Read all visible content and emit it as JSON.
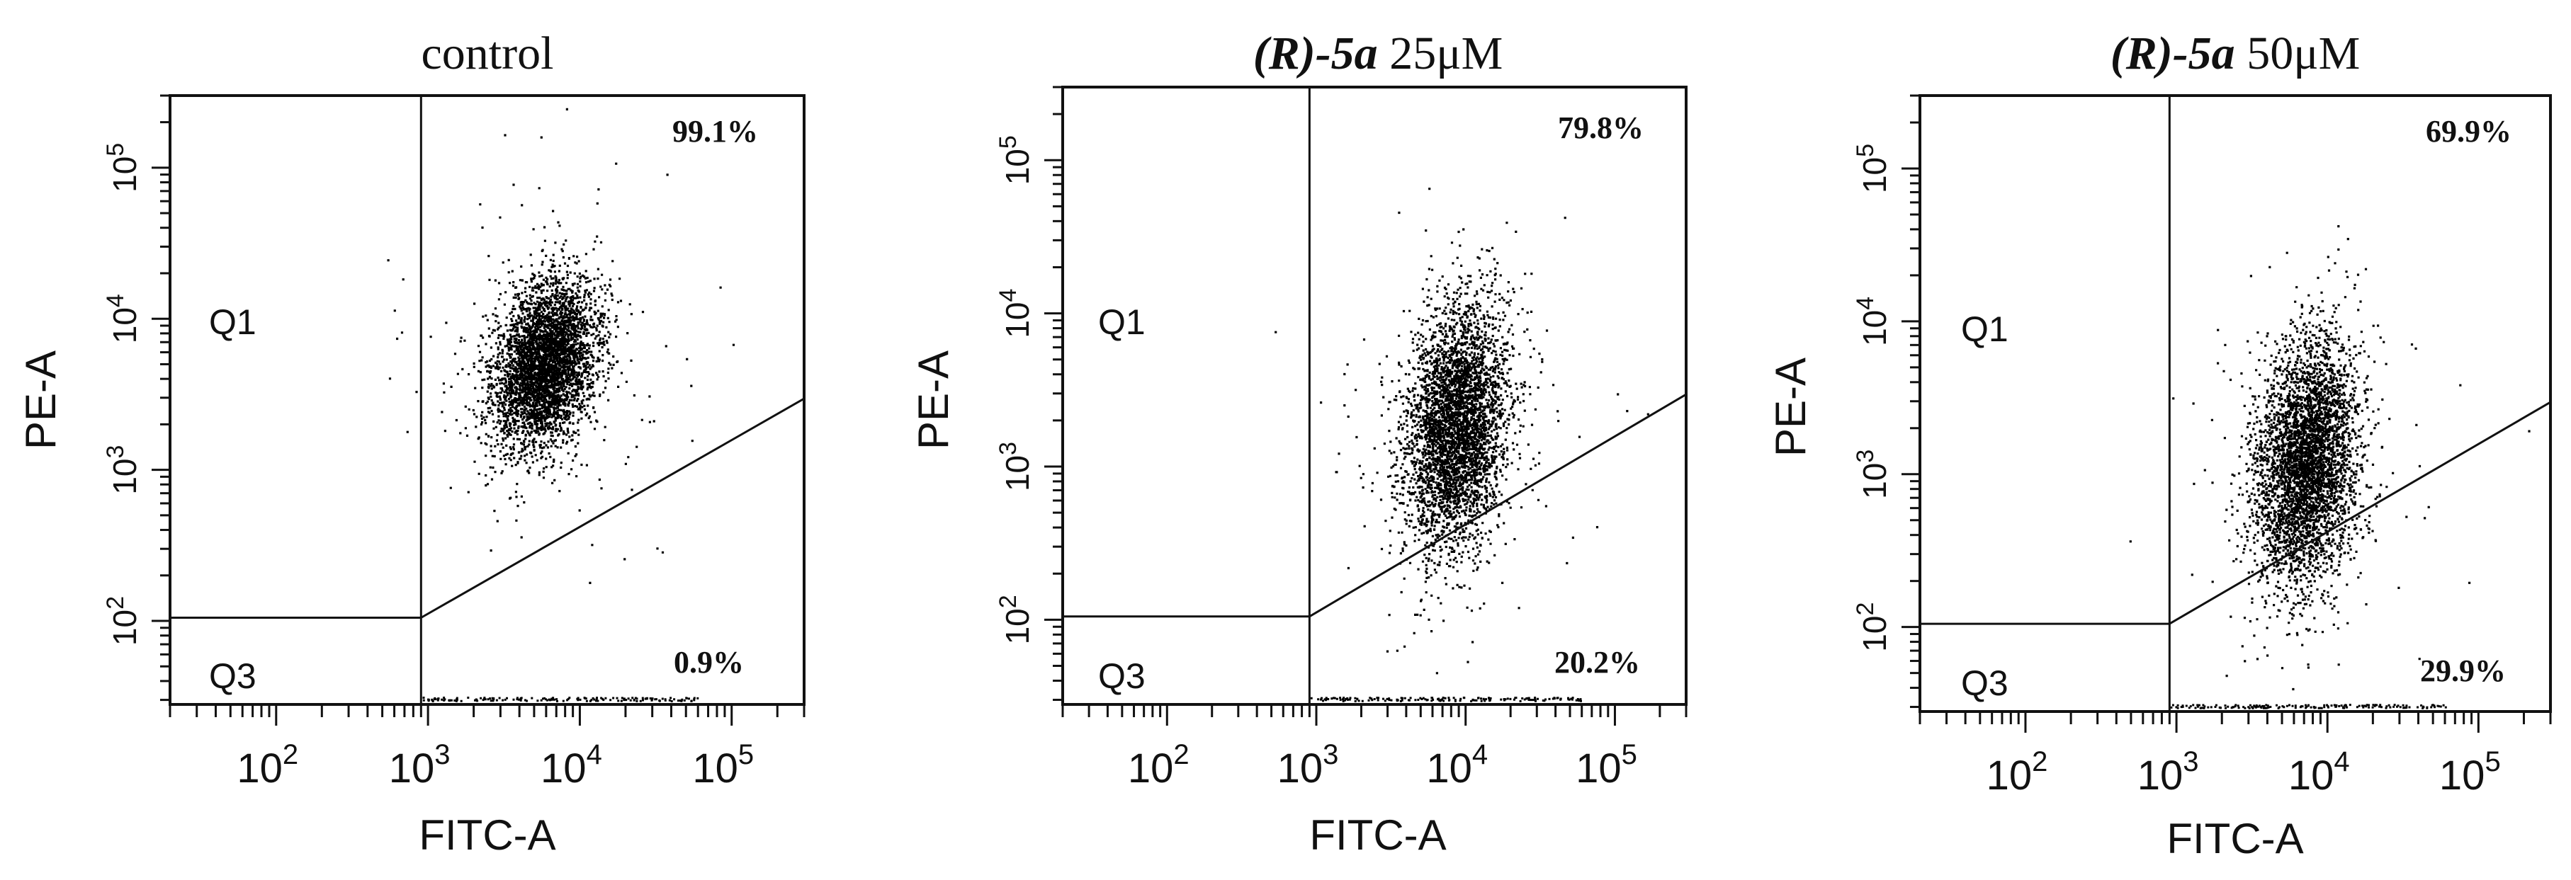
{
  "chart_data": [
    {
      "type": "scatter",
      "title": [
        "",
        "control"
      ],
      "xlabel": "FITC-A",
      "ylabel": "PE-A",
      "x_ticks": [
        {
          "exp": "2"
        },
        {
          "exp": "3"
        },
        {
          "exp": "4"
        },
        {
          "exp": "5"
        }
      ],
      "y_ticks": [
        {
          "exp": "2"
        },
        {
          "exp": "3"
        },
        {
          "exp": "4"
        },
        {
          "exp": "5"
        }
      ],
      "tick_base": "10",
      "xlim": [
        20,
        300000
      ],
      "ylim": [
        28,
        300000
      ],
      "scale": "log",
      "gates": {
        "x_divider": 900,
        "y_divider": 105
      },
      "quadrants": [
        {
          "label": "Q1",
          "percent": ""
        },
        {
          "label": "",
          "percent": "99.1%"
        },
        {
          "label": "Q3",
          "percent": ""
        },
        {
          "label": "",
          "percent": "0.9%"
        }
      ],
      "cluster": {
        "x_center": 5800,
        "y_center": 5000
      }
    },
    {
      "type": "scatter",
      "title": [
        "(R)-5a",
        " 25μM"
      ],
      "xlabel": "FITC-A",
      "ylabel": "PE-A",
      "x_ticks": [
        {
          "exp": "2"
        },
        {
          "exp": "3"
        },
        {
          "exp": "4"
        },
        {
          "exp": "5"
        }
      ],
      "y_ticks": [
        {
          "exp": "2"
        },
        {
          "exp": "3"
        },
        {
          "exp": "4"
        },
        {
          "exp": "5"
        }
      ],
      "tick_base": "10",
      "xlim": [
        20,
        300000
      ],
      "ylim": [
        28,
        300000
      ],
      "scale": "log",
      "gates": {
        "x_divider": 900,
        "y_divider": 105
      },
      "quadrants": [
        {
          "label": "Q1",
          "percent": ""
        },
        {
          "label": "",
          "percent": "79.8%"
        },
        {
          "label": "Q3",
          "percent": ""
        },
        {
          "label": "",
          "percent": "20.2%"
        }
      ],
      "cluster": {
        "x_center": 8500,
        "y_center": 1800
      }
    },
    {
      "type": "scatter",
      "title": [
        "(R)-5a",
        " 50μM"
      ],
      "xlabel": "FITC-A",
      "ylabel": "PE-A",
      "x_ticks": [
        {
          "exp": "2"
        },
        {
          "exp": "3"
        },
        {
          "exp": "4"
        },
        {
          "exp": "5"
        }
      ],
      "y_ticks": [
        {
          "exp": "2"
        },
        {
          "exp": "3"
        },
        {
          "exp": "4"
        },
        {
          "exp": "5"
        }
      ],
      "tick_base": "10",
      "xlim": [
        20,
        300000
      ],
      "ylim": [
        28,
        300000
      ],
      "scale": "log",
      "gates": {
        "x_divider": 900,
        "y_divider": 105
      },
      "quadrants": [
        {
          "label": "Q1",
          "percent": ""
        },
        {
          "label": "",
          "percent": "69.9%"
        },
        {
          "label": "Q3",
          "percent": ""
        },
        {
          "label": "",
          "percent": "29.9%"
        }
      ],
      "cluster": {
        "x_center": 7200,
        "y_center": 1200
      }
    }
  ]
}
